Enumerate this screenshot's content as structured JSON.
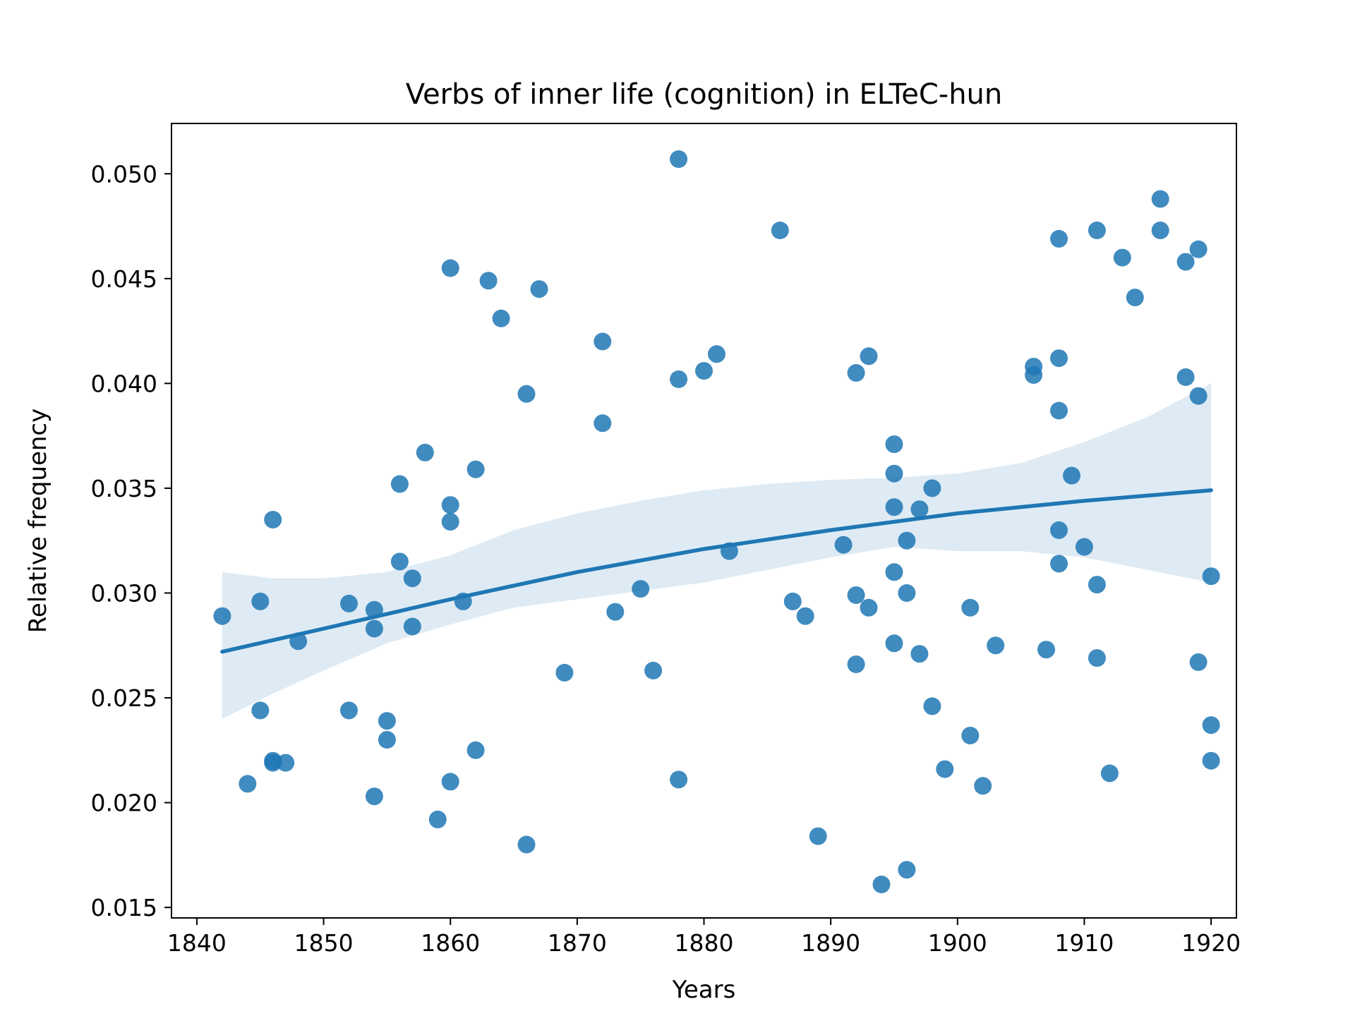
{
  "chart_data": {
    "type": "scatter",
    "title": "Verbs of inner life (cognition) in ELTeC-hun",
    "xlabel": "Years",
    "ylabel": "Relative frequency",
    "xlim": [
      1838,
      1922
    ],
    "ylim": [
      0.0145,
      0.0524
    ],
    "xticks": [
      "1840",
      "1850",
      "1860",
      "1870",
      "1880",
      "1890",
      "1900",
      "1910",
      "1920"
    ],
    "yticks": [
      "0.015",
      "0.020",
      "0.025",
      "0.030",
      "0.035",
      "0.040",
      "0.045",
      "0.050"
    ],
    "grid": false,
    "legend": "none",
    "colors": {
      "points": "#1f77b4",
      "line": "#1f77b4",
      "band": "#1f77b4"
    },
    "series": [
      {
        "type": "scatter",
        "points": [
          [
            1842,
            0.0289
          ],
          [
            1844,
            0.0209
          ],
          [
            1845,
            0.0296
          ],
          [
            1845,
            0.0244
          ],
          [
            1846,
            0.0335
          ],
          [
            1846,
            0.022
          ],
          [
            1846,
            0.0219
          ],
          [
            1847,
            0.0219
          ],
          [
            1848,
            0.0277
          ],
          [
            1852,
            0.0295
          ],
          [
            1852,
            0.0244
          ],
          [
            1854,
            0.0292
          ],
          [
            1854,
            0.0283
          ],
          [
            1854,
            0.0203
          ],
          [
            1855,
            0.0239
          ],
          [
            1855,
            0.023
          ],
          [
            1856,
            0.0352
          ],
          [
            1856,
            0.0315
          ],
          [
            1857,
            0.0307
          ],
          [
            1857,
            0.0284
          ],
          [
            1858,
            0.0367
          ],
          [
            1859,
            0.0192
          ],
          [
            1860,
            0.0455
          ],
          [
            1860,
            0.0342
          ],
          [
            1860,
            0.0334
          ],
          [
            1860,
            0.021
          ],
          [
            1861,
            0.0296
          ],
          [
            1862,
            0.0359
          ],
          [
            1862,
            0.0225
          ],
          [
            1863,
            0.0449
          ],
          [
            1864,
            0.0431
          ],
          [
            1866,
            0.0395
          ],
          [
            1866,
            0.018
          ],
          [
            1867,
            0.0445
          ],
          [
            1869,
            0.0262
          ],
          [
            1872,
            0.042
          ],
          [
            1872,
            0.0381
          ],
          [
            1873,
            0.0291
          ],
          [
            1875,
            0.0302
          ],
          [
            1876,
            0.0263
          ],
          [
            1878,
            0.0507
          ],
          [
            1878,
            0.0402
          ],
          [
            1878,
            0.0211
          ],
          [
            1880,
            0.0406
          ],
          [
            1881,
            0.0414
          ],
          [
            1882,
            0.032
          ],
          [
            1886,
            0.0473
          ],
          [
            1887,
            0.0296
          ],
          [
            1888,
            0.0289
          ],
          [
            1889,
            0.0184
          ],
          [
            1891,
            0.0323
          ],
          [
            1892,
            0.0405
          ],
          [
            1892,
            0.0299
          ],
          [
            1892,
            0.0266
          ],
          [
            1893,
            0.0413
          ],
          [
            1893,
            0.0293
          ],
          [
            1894,
            0.0161
          ],
          [
            1895,
            0.0371
          ],
          [
            1895,
            0.0357
          ],
          [
            1895,
            0.0341
          ],
          [
            1895,
            0.031
          ],
          [
            1895,
            0.0276
          ],
          [
            1896,
            0.0325
          ],
          [
            1896,
            0.03
          ],
          [
            1896,
            0.0168
          ],
          [
            1897,
            0.034
          ],
          [
            1897,
            0.0271
          ],
          [
            1898,
            0.035
          ],
          [
            1898,
            0.0246
          ],
          [
            1899,
            0.0216
          ],
          [
            1901,
            0.0293
          ],
          [
            1901,
            0.0232
          ],
          [
            1902,
            0.0208
          ],
          [
            1903,
            0.0275
          ],
          [
            1906,
            0.0408
          ],
          [
            1906,
            0.0404
          ],
          [
            1907,
            0.0273
          ],
          [
            1908,
            0.0469
          ],
          [
            1908,
            0.0412
          ],
          [
            1908,
            0.0387
          ],
          [
            1908,
            0.033
          ],
          [
            1908,
            0.0314
          ],
          [
            1909,
            0.0356
          ],
          [
            1910,
            0.0322
          ],
          [
            1911,
            0.0473
          ],
          [
            1911,
            0.0304
          ],
          [
            1911,
            0.0269
          ],
          [
            1912,
            0.0214
          ],
          [
            1913,
            0.046
          ],
          [
            1914,
            0.0441
          ],
          [
            1916,
            0.0488
          ],
          [
            1916,
            0.0473
          ],
          [
            1918,
            0.0458
          ],
          [
            1918,
            0.0403
          ],
          [
            1919,
            0.0464
          ],
          [
            1919,
            0.0394
          ],
          [
            1919,
            0.0267
          ],
          [
            1920,
            0.0308
          ],
          [
            1920,
            0.0237
          ],
          [
            1920,
            0.022
          ]
        ]
      },
      {
        "type": "line",
        "points": [
          [
            1842,
            0.0272
          ],
          [
            1850,
            0.0283
          ],
          [
            1860,
            0.0297
          ],
          [
            1870,
            0.031
          ],
          [
            1880,
            0.0321
          ],
          [
            1890,
            0.033
          ],
          [
            1900,
            0.0338
          ],
          [
            1910,
            0.0344
          ],
          [
            1920,
            0.0349
          ]
        ]
      },
      {
        "type": "area",
        "points": [
          [
            1842,
            0.024,
            0.031
          ],
          [
            1846,
            0.0252,
            0.0307
          ],
          [
            1850,
            0.0263,
            0.0307
          ],
          [
            1855,
            0.0276,
            0.031
          ],
          [
            1860,
            0.0285,
            0.0318
          ],
          [
            1865,
            0.0293,
            0.033
          ],
          [
            1870,
            0.0297,
            0.0338
          ],
          [
            1875,
            0.0301,
            0.0344
          ],
          [
            1880,
            0.0305,
            0.0349
          ],
          [
            1885,
            0.0311,
            0.0352
          ],
          [
            1890,
            0.0317,
            0.0354
          ],
          [
            1895,
            0.0322,
            0.0355
          ],
          [
            1900,
            0.032,
            0.0357
          ],
          [
            1905,
            0.032,
            0.0362
          ],
          [
            1910,
            0.0317,
            0.0372
          ],
          [
            1915,
            0.0311,
            0.0384
          ],
          [
            1920,
            0.0305,
            0.04
          ]
        ]
      }
    ]
  }
}
